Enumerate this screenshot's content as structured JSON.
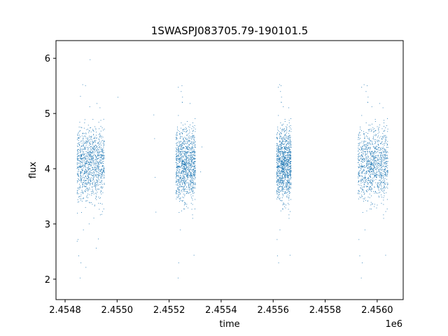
{
  "chart_data": {
    "type": "scatter",
    "title": "1SWASPJ083705.79-190101.5",
    "xlabel": "time",
    "ylabel": "flux",
    "offset_text": "1e6",
    "xlim": [
      2454765,
      2456100
    ],
    "ylim": [
      1.63,
      6.32
    ],
    "x_ticks": [
      2454800,
      2455000,
      2455200,
      2455400,
      2455600,
      2455800,
      2456000
    ],
    "x_tick_labels": [
      "2.4548",
      "2.4550",
      "2.4552",
      "2.4554",
      "2.4556",
      "2.4558",
      "2.4560"
    ],
    "y_ticks": [
      2,
      3,
      4,
      5,
      6
    ],
    "y_tick_labels": [
      "2",
      "3",
      "4",
      "5",
      "6"
    ],
    "grid": false,
    "legend": "none",
    "point_color": "#1f77b4",
    "series": [
      {
        "season_ranges": [
          [
            2454845,
            2454950
          ],
          [
            2455225,
            2455300
          ],
          [
            2455612,
            2455668
          ],
          [
            2455925,
            2456040
          ]
        ],
        "median_flux": 4.1,
        "dense_spread": [
          3.6,
          4.65
        ],
        "extent": [
          1.82,
          6.1
        ],
        "stray_points": [
          [
            2455140,
            4.98
          ],
          [
            2455143,
            4.55
          ],
          [
            2455145,
            3.85
          ],
          [
            2455148,
            3.22
          ],
          [
            2454895,
            5.98
          ],
          [
            2455325,
            4.4
          ],
          [
            2455320,
            3.95
          ],
          [
            2455002,
            5.3
          ]
        ]
      }
    ]
  }
}
